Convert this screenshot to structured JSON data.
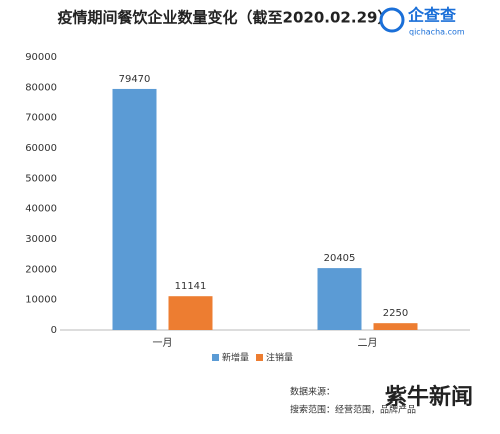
{
  "chart_data": {
    "type": "bar",
    "title": "疫情期间餐饮企业数量变化（截至2020.02.29）",
    "logo": "企查查",
    "logo_url": "qichacha.com",
    "categories": [
      "一月",
      "二月"
    ],
    "series": [
      {
        "name": "新增量",
        "color": "#5b9bd5",
        "values": [
          79470,
          20405
        ]
      },
      {
        "name": "注销量",
        "color": "#ed7d31",
        "values": [
          11141,
          2250
        ]
      }
    ],
    "ylim": [
      0,
      90000
    ],
    "yticks": [
      0,
      10000,
      20000,
      30000,
      40000,
      50000,
      60000,
      70000,
      80000,
      90000
    ],
    "grid": false,
    "legend": "bottom",
    "footnotes": [
      "数据来源：",
      "搜索范围：经营范围，品牌产品"
    ],
    "watermark": "紫牛新闻"
  }
}
